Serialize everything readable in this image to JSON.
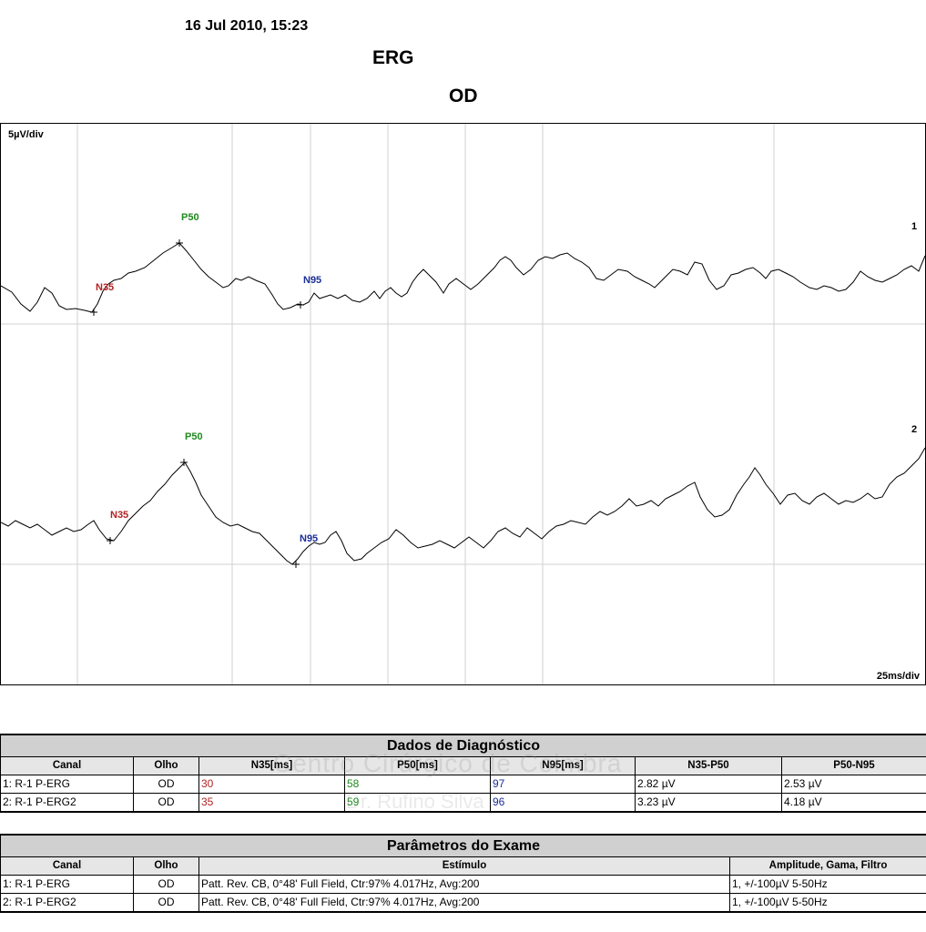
{
  "header": {
    "date": "16 Jul 2010, 15:23",
    "title": "ERG",
    "eye": "OD"
  },
  "plot": {
    "y_scale": "5µV/div",
    "x_scale": "25ms/div",
    "channels": [
      {
        "id": "1",
        "labels": {
          "n35": "N35",
          "p50": "P50",
          "n95": "N95"
        }
      },
      {
        "id": "2",
        "labels": {
          "n35": "N35",
          "p50": "P50",
          "n95": "N95"
        }
      }
    ],
    "colors": {
      "n35": "#b22222",
      "p50": "#1e8b1e",
      "n95": "#1c2f99"
    }
  },
  "watermark": {
    "line1": "Centro Cirúrgico de Coimbra",
    "line2": "Dr. Rufino Silva"
  },
  "diag": {
    "title": "Dados de Diagnóstico",
    "headers": [
      "Canal",
      "Olho",
      "N35[ms]",
      "P50[ms]",
      "N95[ms]",
      "N35-P50",
      "P50-N95"
    ],
    "rows": [
      [
        "1: R-1 P-ERG",
        "OD",
        "30",
        "58",
        "97",
        "2.82 µV",
        "2.53 µV"
      ],
      [
        "2: R-1 P-ERG2",
        "OD",
        "35",
        "59",
        "96",
        "3.23 µV",
        "4.18 µV"
      ]
    ]
  },
  "params": {
    "title": "Parâmetros do Exame",
    "headers": [
      "Canal",
      "Olho",
      "Estímulo",
      "Amplitude, Gama, Filtro"
    ],
    "rows": [
      [
        "1: R-1 P-ERG",
        "OD",
        "Patt. Rev. CB, 0°48' Full Field, Ctr:97% 4.017Hz, Avg:200",
        "1, +/-100µV 5-50Hz"
      ],
      [
        "2: R-1 P-ERG2",
        "OD",
        "Patt. Rev. CB, 0°48' Full Field, Ctr:97% 4.017Hz, Avg:200",
        "1, +/-100µV 5-50Hz"
      ]
    ]
  }
}
